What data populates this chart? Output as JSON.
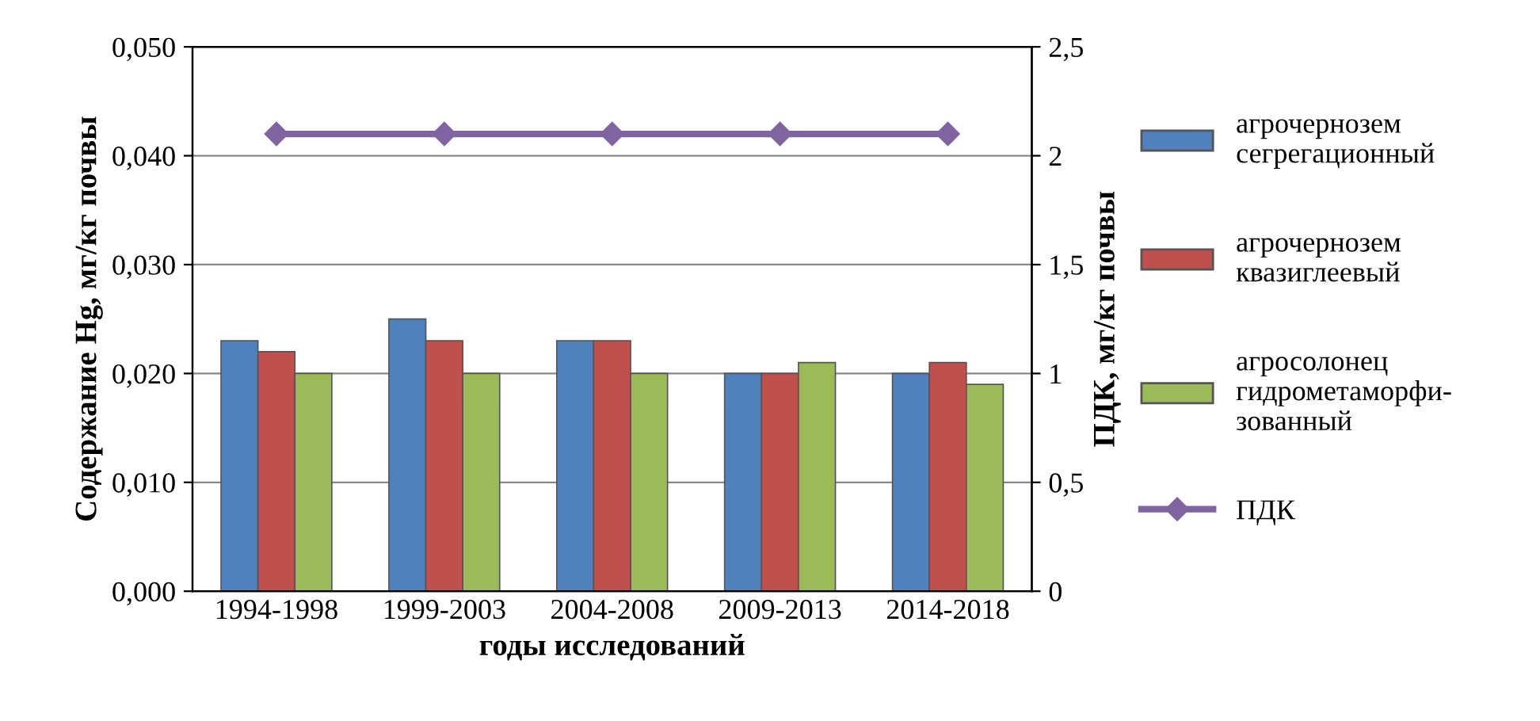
{
  "chart_data": {
    "type": "bar",
    "xlabel": "годы исследований",
    "ylabel": "Содержание Hg, мг/кг почвы",
    "y2label": "ПДК, мг/кг почвы",
    "categories": [
      "1994-1998",
      "1999-2003",
      "2004-2008",
      "2009-2013",
      "2014-2018"
    ],
    "series": [
      {
        "name": "агрочернозем\nсегрегационный",
        "color": "#4f81bd",
        "values": [
          0.023,
          0.025,
          0.023,
          0.02,
          0.02
        ]
      },
      {
        "name": "агрочернозем\nквазиглеевый",
        "color": "#c0504d",
        "values": [
          0.022,
          0.023,
          0.023,
          0.02,
          0.021
        ]
      },
      {
        "name": "агросолонец\nгидрометаморфи-\nзованный",
        "color": "#9bbb59",
        "values": [
          0.02,
          0.02,
          0.02,
          0.021,
          0.019
        ]
      },
      {
        "name": "ПДК",
        "type": "line",
        "axis": "y2",
        "color": "#8064a2",
        "marker": "diamond",
        "values": [
          2.1,
          2.1,
          2.1,
          2.1,
          2.1
        ]
      }
    ],
    "ylim": [
      0,
      0.05
    ],
    "yticks": [
      {
        "value": 0,
        "label": "0,000"
      },
      {
        "value": 0.01,
        "label": "0,010"
      },
      {
        "value": 0.02,
        "label": "0,020"
      },
      {
        "value": 0.03,
        "label": "0,030"
      },
      {
        "value": 0.04,
        "label": "0,040"
      },
      {
        "value": 0.05,
        "label": "0,050"
      }
    ],
    "y2lim": [
      0,
      2.5
    ],
    "y2ticks": [
      0,
      {
        "value": 0.5,
        "label": "0,5"
      },
      1,
      {
        "value": 1.5,
        "label": "1,5"
      },
      2,
      {
        "value": 2.5,
        "label": "2,5"
      }
    ],
    "grid": "y",
    "legend": "right"
  }
}
